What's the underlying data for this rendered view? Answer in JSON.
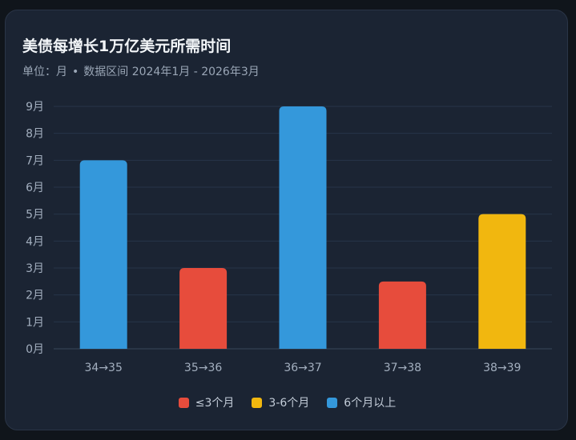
{
  "chart_data": {
    "type": "bar",
    "title": "美债每增长1万亿美元所需时间",
    "subtitle_unit": "单位：月",
    "subtitle_range": "数据区间 2024年1月 - 2026年3月",
    "categories": [
      "34→35",
      "35→36",
      "36→37",
      "37→38",
      "38→39"
    ],
    "values": [
      7,
      3,
      9,
      2.5,
      5
    ],
    "bar_groups": [
      "6-plus",
      "le-3",
      "6-plus",
      "le-3",
      "3-6"
    ],
    "ylim": [
      0,
      9
    ],
    "y_ticks": [
      "0月",
      "1月",
      "2月",
      "3月",
      "4月",
      "5月",
      "6月",
      "7月",
      "8月",
      "9月"
    ],
    "grid": true,
    "legend_position": "bottom",
    "legend": [
      {
        "key": "le-3",
        "label": "≤3个月",
        "color": "#e74c3c"
      },
      {
        "key": "3-6",
        "label": "3-6个月",
        "color": "#f1b70f"
      },
      {
        "key": "6-plus",
        "label": "6个月以上",
        "color": "#3498db"
      }
    ]
  },
  "colors": {
    "background": "#1b2433",
    "grid": "#27354a",
    "axis": "#3a475b",
    "tick_text": "#a3afbf"
  }
}
